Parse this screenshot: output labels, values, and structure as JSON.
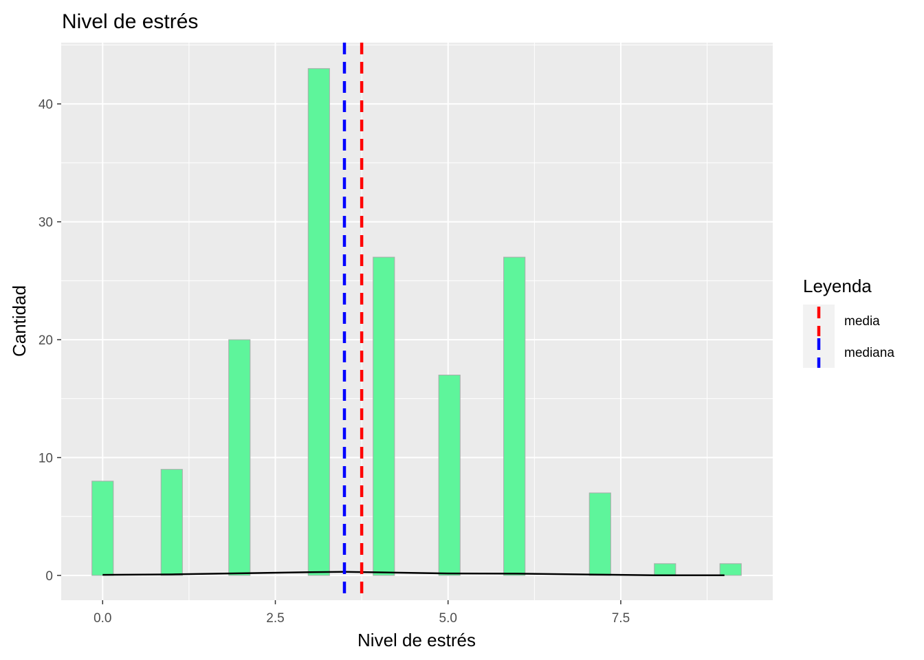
{
  "chart_data": {
    "type": "bar",
    "title": "Nivel de estrés",
    "xlabel": "Nivel de estrés",
    "ylabel": "Cantidad",
    "xlim": [
      -0.6,
      9.7
    ],
    "ylim": [
      -2.1,
      45.2
    ],
    "x_ticks": [
      0.0,
      2.5,
      5.0,
      7.5
    ],
    "x_tick_labels": [
      "0.0",
      "2.5",
      "5.0",
      "7.5"
    ],
    "y_ticks": [
      0,
      10,
      20,
      30,
      40
    ],
    "y_tick_labels": [
      "0",
      "10",
      "20",
      "30",
      "40"
    ],
    "bar_width": 0.31,
    "bar_color": "#5EF59B",
    "bar_border_color": "#AAAAAA",
    "bars": [
      {
        "x": 0.0,
        "value": 8
      },
      {
        "x": 1.0,
        "value": 9
      },
      {
        "x": 1.98,
        "value": 20
      },
      {
        "x": 3.13,
        "value": 43
      },
      {
        "x": 4.07,
        "value": 27
      },
      {
        "x": 5.02,
        "value": 17
      },
      {
        "x": 5.96,
        "value": 27
      },
      {
        "x": 7.2,
        "value": 7
      },
      {
        "x": 8.14,
        "value": 1
      },
      {
        "x": 9.09,
        "value": 1
      }
    ],
    "density_curve": {
      "color": "#000000",
      "x": [
        0.0,
        1.0,
        2.0,
        3.0,
        3.5,
        4.0,
        5.0,
        6.0,
        7.0,
        8.0,
        9.0
      ],
      "y": [
        0.05,
        0.09,
        0.18,
        0.28,
        0.3,
        0.26,
        0.17,
        0.15,
        0.08,
        0.02,
        0.01
      ]
    },
    "vlines": [
      {
        "name": "media",
        "x": 3.75,
        "color": "#FF0000",
        "style": "dashed"
      },
      {
        "name": "mediana",
        "x": 3.5,
        "color": "#0000FF",
        "style": "dashed"
      }
    ],
    "grid": true,
    "legend": {
      "title": "Leyenda",
      "position": "right",
      "entries": [
        {
          "label": "media",
          "color": "#FF0000"
        },
        {
          "label": "mediana",
          "color": "#0000FF"
        }
      ]
    },
    "panel_background": "#EBEBEB",
    "grid_color": "#FFFFFF"
  }
}
